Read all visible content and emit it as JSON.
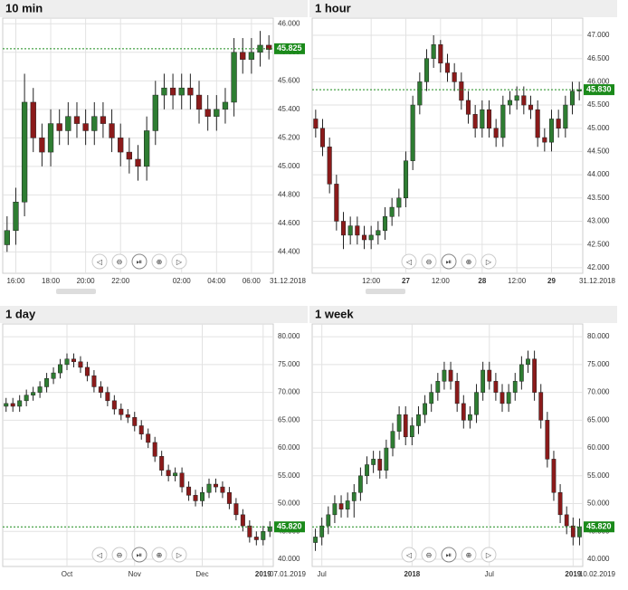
{
  "chart_data": [
    {
      "type": "candlestick",
      "title": "10 min",
      "up_color": "#2e7d32",
      "down_color": "#8b1a1a",
      "open": [
        44.45,
        44.55,
        44.75,
        45.45,
        45.2,
        45.1,
        45.3,
        45.25,
        45.35,
        45.3,
        45.25,
        45.35,
        45.3,
        45.2,
        45.1,
        45.05,
        45.0,
        45.25,
        45.5,
        45.55,
        45.5,
        45.55,
        45.5,
        45.4,
        45.35,
        45.4,
        45.45,
        45.8,
        45.75,
        45.8,
        45.85
      ],
      "high": [
        44.65,
        44.85,
        45.65,
        45.55,
        45.3,
        45.4,
        45.4,
        45.45,
        45.45,
        45.4,
        45.45,
        45.45,
        45.4,
        45.3,
        45.2,
        45.15,
        45.35,
        45.6,
        45.65,
        45.65,
        45.65,
        45.65,
        45.6,
        45.5,
        45.5,
        45.55,
        45.9,
        45.9,
        45.9,
        45.95,
        45.92
      ],
      "low": [
        44.4,
        44.45,
        44.65,
        45.1,
        45.0,
        45.0,
        45.15,
        45.15,
        45.2,
        45.15,
        45.15,
        45.2,
        45.1,
        45.0,
        44.95,
        44.9,
        44.9,
        45.15,
        45.4,
        45.4,
        45.4,
        45.4,
        45.3,
        45.25,
        45.25,
        45.3,
        45.35,
        45.65,
        45.65,
        45.7,
        45.75
      ],
      "close": [
        44.55,
        44.75,
        45.45,
        45.2,
        45.1,
        45.3,
        45.25,
        45.35,
        45.3,
        45.25,
        45.35,
        45.3,
        45.2,
        45.1,
        45.05,
        45.0,
        45.25,
        45.5,
        45.55,
        45.5,
        45.55,
        45.5,
        45.4,
        45.35,
        45.4,
        45.45,
        45.8,
        45.75,
        45.8,
        45.85,
        45.82
      ],
      "ylim": [
        44.25,
        46.04
      ],
      "yticks": [
        {
          "value": 44.4,
          "label": "44.400"
        },
        {
          "value": 44.6,
          "label": "44.600"
        },
        {
          "value": 44.8,
          "label": "44.800"
        },
        {
          "value": 45.0,
          "label": "45.000"
        },
        {
          "value": 45.2,
          "label": "45.200"
        },
        {
          "value": 45.4,
          "label": "45.400"
        },
        {
          "value": 45.6,
          "label": "45.600"
        },
        {
          "value": 45.8,
          "label": "45.800"
        },
        {
          "value": 46.0,
          "label": "46.000"
        }
      ],
      "xticks": [
        {
          "value": 1,
          "label": "16:00"
        },
        {
          "value": 5,
          "label": "18:00"
        },
        {
          "value": 9,
          "label": "20:00"
        },
        {
          "value": 13,
          "label": "22:00"
        },
        {
          "value": 20,
          "label": "02:00"
        },
        {
          "value": 24,
          "label": "04:00"
        },
        {
          "value": 28,
          "label": "06:00"
        }
      ],
      "end_label": "31.12.2018",
      "last": {
        "value": 45.825,
        "label": "45.825"
      },
      "grid": true
    },
    {
      "type": "candlestick",
      "title": "1 hour",
      "up_color": "#2e7d32",
      "down_color": "#8b1a1a",
      "open": [
        45.2,
        45.0,
        44.6,
        43.8,
        43.0,
        42.7,
        42.9,
        42.7,
        42.6,
        42.7,
        42.8,
        43.1,
        43.3,
        43.5,
        44.3,
        45.5,
        46.0,
        46.5,
        46.8,
        46.4,
        46.2,
        46.0,
        45.6,
        45.3,
        45.0,
        45.4,
        45.0,
        44.8,
        45.5,
        45.6,
        45.7,
        45.5,
        45.4,
        44.8,
        44.7,
        45.2,
        45.0,
        45.5,
        45.8
      ],
      "high": [
        45.4,
        45.2,
        44.8,
        44.0,
        43.2,
        43.1,
        43.1,
        42.9,
        42.9,
        43.0,
        43.3,
        43.5,
        43.7,
        44.5,
        45.7,
        46.2,
        46.7,
        47.0,
        46.9,
        46.6,
        46.4,
        46.2,
        45.8,
        45.5,
        45.6,
        45.6,
        45.2,
        45.7,
        45.8,
        45.9,
        45.9,
        45.7,
        45.6,
        45.0,
        45.4,
        45.4,
        45.7,
        46.0,
        46.0
      ],
      "low": [
        44.8,
        44.4,
        43.6,
        42.8,
        42.4,
        42.5,
        42.5,
        42.4,
        42.4,
        42.5,
        42.6,
        42.9,
        43.1,
        43.3,
        44.1,
        45.3,
        45.8,
        46.3,
        46.2,
        46.0,
        45.8,
        45.4,
        45.1,
        44.8,
        44.8,
        44.8,
        44.6,
        44.6,
        45.3,
        45.4,
        45.3,
        45.2,
        44.6,
        44.5,
        44.5,
        44.8,
        44.8,
        45.3,
        45.6
      ],
      "close": [
        45.0,
        44.6,
        43.8,
        43.0,
        42.7,
        42.9,
        42.7,
        42.6,
        42.7,
        42.8,
        43.1,
        43.3,
        43.5,
        44.3,
        45.5,
        46.0,
        46.5,
        46.8,
        46.4,
        46.2,
        46.0,
        45.6,
        45.3,
        45.0,
        45.4,
        45.0,
        44.8,
        45.5,
        45.6,
        45.7,
        45.5,
        45.4,
        44.8,
        44.7,
        45.2,
        45.0,
        45.5,
        45.8,
        45.83
      ],
      "ylim": [
        41.88,
        47.37
      ],
      "yticks": [
        {
          "value": 42.0,
          "label": "42.000"
        },
        {
          "value": 42.5,
          "label": "42.500"
        },
        {
          "value": 43.0,
          "label": "43.000"
        },
        {
          "value": 43.5,
          "label": "43.500"
        },
        {
          "value": 44.0,
          "label": "44.000"
        },
        {
          "value": 44.5,
          "label": "44.500"
        },
        {
          "value": 45.0,
          "label": "45.000"
        },
        {
          "value": 45.5,
          "label": "45.500"
        },
        {
          "value": 46.0,
          "label": "46.000"
        },
        {
          "value": 46.5,
          "label": "46.500"
        },
        {
          "value": 47.0,
          "label": "47.000"
        }
      ],
      "xticks": [
        {
          "value": 8,
          "label": "12:00"
        },
        {
          "value": 13,
          "label": "27"
        },
        {
          "value": 18,
          "label": "12:00"
        },
        {
          "value": 24,
          "label": "28"
        },
        {
          "value": 29,
          "label": "12:00"
        },
        {
          "value": 34,
          "label": "29"
        }
      ],
      "end_label": "31.12.2018",
      "last": {
        "value": 45.83,
        "label": "45.830"
      },
      "grid": true
    },
    {
      "type": "candlestick",
      "title": "1 day",
      "up_color": "#2e7d32",
      "down_color": "#8b1a1a",
      "open": [
        67.5,
        68.0,
        67.5,
        68.5,
        69.5,
        70.0,
        71.0,
        72.5,
        73.5,
        75.0,
        76.0,
        75.5,
        74.5,
        73.0,
        71.0,
        70.0,
        68.5,
        67.0,
        66.0,
        65.5,
        64.0,
        62.5,
        61.0,
        58.5,
        56.0,
        55.0,
        55.5,
        53.0,
        51.5,
        50.5,
        52.0,
        53.5,
        53.0,
        52.0,
        50.0,
        48.0,
        46.0,
        44.0,
        43.5,
        45.0
      ],
      "high": [
        69.0,
        69.0,
        69.5,
        70.5,
        71.0,
        72.0,
        73.5,
        74.5,
        76.0,
        77.0,
        77.0,
        76.5,
        75.5,
        74.0,
        72.0,
        71.0,
        69.5,
        68.0,
        67.0,
        66.5,
        65.0,
        63.5,
        62.0,
        59.5,
        57.0,
        56.5,
        56.5,
        54.0,
        52.5,
        53.0,
        54.5,
        54.5,
        54.0,
        53.0,
        51.0,
        49.0,
        47.0,
        45.0,
        46.0,
        46.82
      ],
      "low": [
        66.5,
        66.5,
        66.5,
        67.5,
        68.5,
        69.0,
        70.0,
        71.5,
        72.5,
        74.0,
        74.5,
        73.5,
        72.0,
        70.0,
        69.0,
        67.5,
        66.0,
        65.0,
        64.5,
        63.0,
        61.5,
        60.0,
        57.5,
        55.0,
        54.0,
        54.0,
        52.0,
        50.5,
        49.5,
        49.5,
        51.0,
        52.0,
        51.0,
        49.0,
        47.0,
        45.0,
        43.0,
        42.5,
        42.5,
        44.0
      ],
      "close": [
        68.0,
        67.5,
        68.5,
        69.5,
        70.0,
        71.0,
        72.5,
        73.5,
        75.0,
        76.0,
        75.5,
        74.5,
        73.0,
        71.0,
        70.0,
        68.5,
        67.0,
        66.0,
        65.5,
        64.0,
        62.5,
        61.0,
        58.5,
        56.0,
        55.0,
        55.5,
        53.0,
        51.5,
        50.5,
        52.0,
        53.5,
        53.0,
        52.0,
        50.0,
        48.0,
        46.0,
        44.0,
        43.5,
        45.0,
        45.82
      ],
      "ylim": [
        38.7,
        82.3
      ],
      "yticks": [
        {
          "value": 40,
          "label": "40.000"
        },
        {
          "value": 45,
          "label": "45.000"
        },
        {
          "value": 50,
          "label": "50.000"
        },
        {
          "value": 55,
          "label": "55.000"
        },
        {
          "value": 60,
          "label": "60.000"
        },
        {
          "value": 65,
          "label": "65.000"
        },
        {
          "value": 70,
          "label": "70.000"
        },
        {
          "value": 75,
          "label": "75.000"
        },
        {
          "value": 80,
          "label": "80.000"
        }
      ],
      "xticks": [
        {
          "value": 9,
          "label": "Oct"
        },
        {
          "value": 19,
          "label": "Nov"
        },
        {
          "value": 29,
          "label": "Dec"
        },
        {
          "value": 38,
          "label": "2019"
        }
      ],
      "end_label": "07.01.2019",
      "last": {
        "value": 45.82,
        "label": "45.820"
      },
      "grid": true
    },
    {
      "type": "candlestick",
      "title": "1 week",
      "up_color": "#2e7d32",
      "down_color": "#8b1a1a",
      "open": [
        43.0,
        44.0,
        46.0,
        48.0,
        50.0,
        49.0,
        50.5,
        52.0,
        55.0,
        57.0,
        58.0,
        56.0,
        60.0,
        63.0,
        66.0,
        62.0,
        64.0,
        66.0,
        68.0,
        70.0,
        72.0,
        74.0,
        72.0,
        68.0,
        65.0,
        66.0,
        70.0,
        74.0,
        72.0,
        70.0,
        68.0,
        70.0,
        72.0,
        75.0,
        76.0,
        70.0,
        65.0,
        58.0,
        52.0,
        48.0,
        46.0,
        44.0
      ],
      "high": [
        45.5,
        47.5,
        49.5,
        51.5,
        51.5,
        52.0,
        53.5,
        56.5,
        58.5,
        59.5,
        59.5,
        61.5,
        64.5,
        67.5,
        67.5,
        65.5,
        67.5,
        69.5,
        71.5,
        73.5,
        75.5,
        75.5,
        73.5,
        69.5,
        67.5,
        71.5,
        75.5,
        75.5,
        73.5,
        71.5,
        71.5,
        73.5,
        76.5,
        77.5,
        77.5,
        71.5,
        66.5,
        59.5,
        53.5,
        49.5,
        47.5,
        47.32
      ],
      "low": [
        41.5,
        42.5,
        44.5,
        46.5,
        47.5,
        47.5,
        47.5,
        50.5,
        53.5,
        55.5,
        54.5,
        54.5,
        58.5,
        61.5,
        60.5,
        60.5,
        62.5,
        64.5,
        66.5,
        68.5,
        70.5,
        70.5,
        66.5,
        63.5,
        63.5,
        64.5,
        68.5,
        70.5,
        68.5,
        66.5,
        66.5,
        68.5,
        70.5,
        73.5,
        68.5,
        63.5,
        56.5,
        50.5,
        46.5,
        44.5,
        42.5,
        42.5
      ],
      "close": [
        44.0,
        46.0,
        48.0,
        50.0,
        49.0,
        50.5,
        52.0,
        55.0,
        57.0,
        58.0,
        56.0,
        60.0,
        63.0,
        66.0,
        62.0,
        64.0,
        66.0,
        68.0,
        70.0,
        72.0,
        74.0,
        72.0,
        68.0,
        65.0,
        66.0,
        70.0,
        74.0,
        72.0,
        70.0,
        68.0,
        70.0,
        72.0,
        75.0,
        76.0,
        70.0,
        65.0,
        58.0,
        52.0,
        48.0,
        46.0,
        44.0,
        45.82
      ],
      "ylim": [
        38.7,
        82.3
      ],
      "yticks": [
        {
          "value": 40,
          "label": "40.000"
        },
        {
          "value": 45,
          "label": "45.000"
        },
        {
          "value": 50,
          "label": "50.000"
        },
        {
          "value": 55,
          "label": "55.000"
        },
        {
          "value": 60,
          "label": "60.000"
        },
        {
          "value": 65,
          "label": "65.000"
        },
        {
          "value": 70,
          "label": "70.000"
        },
        {
          "value": 75,
          "label": "75.000"
        },
        {
          "value": 80,
          "label": "80.000"
        }
      ],
      "xticks": [
        {
          "value": 1,
          "label": "Jul"
        },
        {
          "value": 15,
          "label": "2018"
        },
        {
          "value": 27,
          "label": "Jul"
        },
        {
          "value": 40,
          "label": "2019"
        }
      ],
      "end_label": "10.02.2019",
      "last": {
        "value": 45.82,
        "label": "45.820"
      },
      "grid": true
    }
  ]
}
